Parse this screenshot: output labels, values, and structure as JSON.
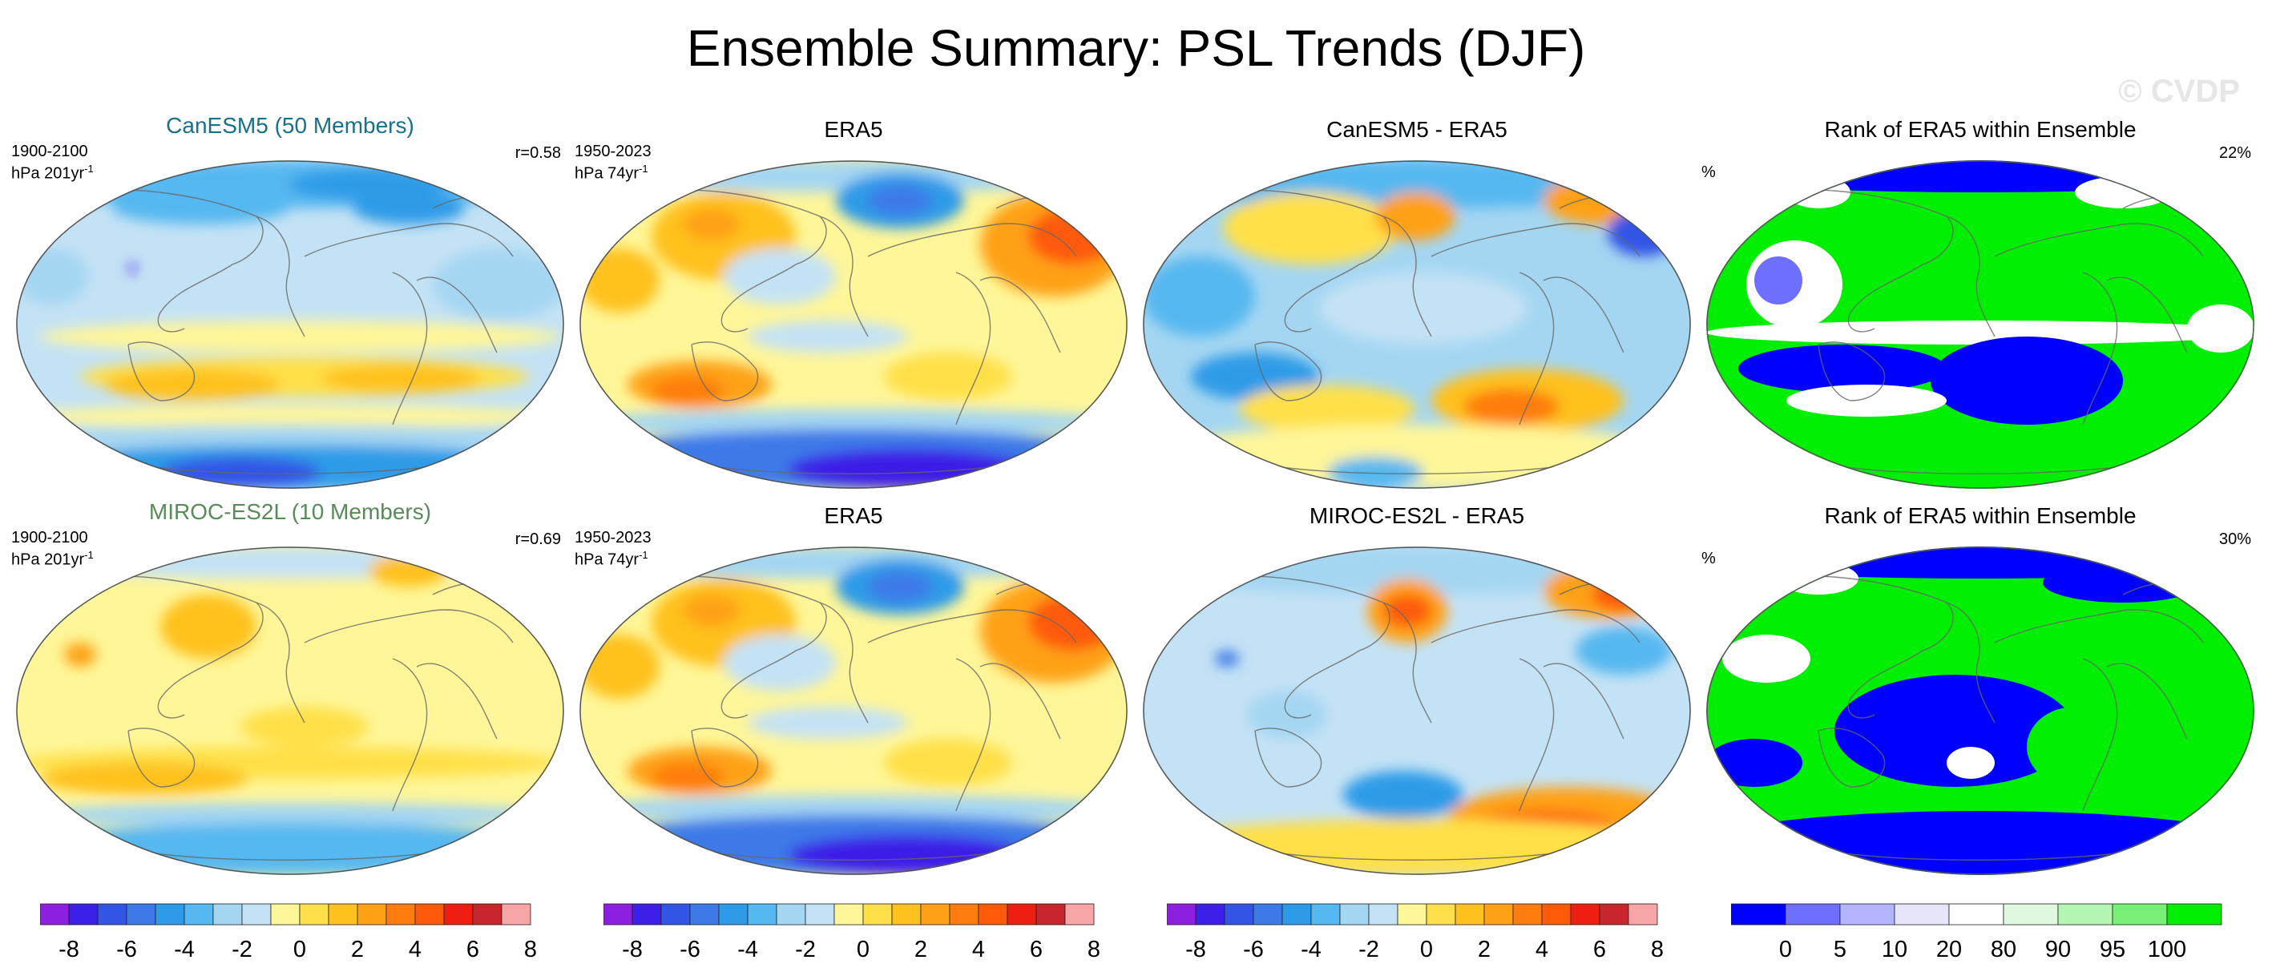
{
  "title": "Ensemble Summary: PSL Trends (DJF)",
  "watermark": "© CVDP",
  "colors": {
    "trend": [
      "#8c1fe0",
      "#3c1fe8",
      "#3355e6",
      "#3d7ae8",
      "#2e9be8",
      "#56b8f0",
      "#a4d6f2",
      "#c4e2f5",
      "#fff699",
      "#ffe04a",
      "#ffc11e",
      "#ffa114",
      "#ff7d0e",
      "#ff5a0a",
      "#ef1e12",
      "#c8262c",
      "#f6a6a6"
    ],
    "rank": [
      "#0000ff",
      "#6e6eff",
      "#b4b4ff",
      "#e6e6fa",
      "#ffffff",
      "#e0f8e0",
      "#b4f5b4",
      "#78f078",
      "#00ee00"
    ],
    "ocean_default": "#c4e2f5",
    "coast": "#666666"
  },
  "rows": [
    {
      "model": {
        "title": "CanESM5 (50 Members)",
        "period": "1900-2100",
        "units": "hPa 201yr",
        "units_sup": "-1",
        "corr": "r=0.58"
      },
      "obs": {
        "title": "ERA5",
        "period": "1950-2023",
        "units": "hPa 74yr",
        "units_sup": "-1"
      },
      "diff": {
        "title": "CanESM5 - ERA5"
      },
      "rank": {
        "title": "Rank of ERA5 within Ensemble",
        "units": "%",
        "pct": "22%"
      }
    },
    {
      "model": {
        "title": "MIROC-ES2L (10 Members)",
        "period": "1900-2100",
        "units": "hPa 201yr",
        "units_sup": "-1",
        "corr": "r=0.69"
      },
      "obs": {
        "title": "ERA5",
        "period": "1950-2023",
        "units": "hPa 74yr",
        "units_sup": "-1"
      },
      "diff": {
        "title": "MIROC-ES2L - ERA5"
      },
      "rank": {
        "title": "Rank of ERA5 within Ensemble",
        "units": "%",
        "pct": "30%"
      }
    }
  ],
  "colorbars": {
    "trend_labels": [
      "-8",
      "-6",
      "-4",
      "-2",
      "0",
      "2",
      "4",
      "6",
      "8"
    ],
    "rank_labels": [
      "0",
      "5",
      "10",
      "20",
      "80",
      "90",
      "95",
      "100"
    ]
  },
  "chart_data": [
    {
      "type": "heatmap",
      "title": "CanESM5 (50 Members)",
      "units": "hPa 201yr-1",
      "period": "1900-2100",
      "correlation": 0.58,
      "levels": [
        -8,
        -7,
        -6,
        -5,
        -4,
        -3,
        -2,
        -1,
        0,
        1,
        2,
        3,
        4,
        5,
        6,
        7,
        8
      ]
    },
    {
      "type": "heatmap",
      "title": "ERA5",
      "units": "hPa 74yr-1",
      "period": "1950-2023",
      "levels": [
        -8,
        -7,
        -6,
        -5,
        -4,
        -3,
        -2,
        -1,
        0,
        1,
        2,
        3,
        4,
        5,
        6,
        7,
        8
      ]
    },
    {
      "type": "heatmap",
      "title": "CanESM5 - ERA5",
      "levels": [
        -8,
        -7,
        -6,
        -5,
        -4,
        -3,
        -2,
        -1,
        0,
        1,
        2,
        3,
        4,
        5,
        6,
        7,
        8
      ]
    },
    {
      "type": "heatmap",
      "title": "Rank of ERA5 within Ensemble",
      "units": "%",
      "pct_value": 22,
      "levels": [
        0,
        5,
        10,
        20,
        80,
        90,
        95,
        100
      ]
    },
    {
      "type": "heatmap",
      "title": "MIROC-ES2L (10 Members)",
      "units": "hPa 201yr-1",
      "period": "1900-2100",
      "correlation": 0.69,
      "levels": [
        -8,
        -7,
        -6,
        -5,
        -4,
        -3,
        -2,
        -1,
        0,
        1,
        2,
        3,
        4,
        5,
        6,
        7,
        8
      ]
    },
    {
      "type": "heatmap",
      "title": "ERA5",
      "units": "hPa 74yr-1",
      "period": "1950-2023",
      "levels": [
        -8,
        -7,
        -6,
        -5,
        -4,
        -3,
        -2,
        -1,
        0,
        1,
        2,
        3,
        4,
        5,
        6,
        7,
        8
      ]
    },
    {
      "type": "heatmap",
      "title": "MIROC-ES2L - ERA5",
      "levels": [
        -8,
        -7,
        -6,
        -5,
        -4,
        -3,
        -2,
        -1,
        0,
        1,
        2,
        3,
        4,
        5,
        6,
        7,
        8
      ]
    },
    {
      "type": "heatmap",
      "title": "Rank of ERA5 within Ensemble",
      "units": "%",
      "pct_value": 30,
      "levels": [
        0,
        5,
        10,
        20,
        80,
        90,
        95,
        100
      ]
    }
  ]
}
